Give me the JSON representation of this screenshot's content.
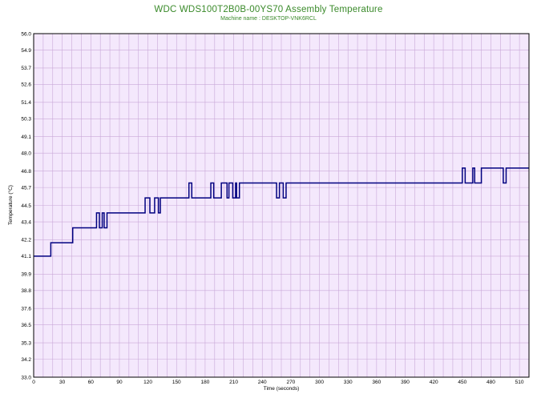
{
  "chart_data": {
    "type": "line",
    "title": "WDC WDS100T2B0B-00YS70 Assembly Temperature",
    "subtitle": "Machine name : DESKTOP-VNK6RCL",
    "xlabel": "Time (seconds)",
    "ylabel": "Temperature (°C)",
    "xlim": [
      0,
      520
    ],
    "ylim": [
      33.0,
      56.0
    ],
    "grid": true,
    "x_ticks": [
      "0",
      "30",
      "60",
      "90",
      "120",
      "150",
      "180",
      "210",
      "240",
      "270",
      "300",
      "330",
      "360",
      "390",
      "420",
      "450",
      "480",
      "510"
    ],
    "y_ticks": [
      "56.0",
      "54.9",
      "53.7",
      "52.6",
      "51.4",
      "50.3",
      "49.1",
      "48.0",
      "46.8",
      "45.7",
      "44.5",
      "43.4",
      "42.2",
      "41.1",
      "39.9",
      "38.8",
      "37.6",
      "36.5",
      "35.3",
      "34.2",
      "33.0"
    ],
    "colors": {
      "plot_bg": "#f4e8fc",
      "grid": "#c9a8d8",
      "line": "#000080",
      "title": "#3a8a2a"
    },
    "series": [
      {
        "name": "",
        "x": [
          0,
          18,
          18,
          41,
          41,
          66,
          66,
          69,
          69,
          72,
          72,
          74,
          74,
          77,
          77,
          81,
          81,
          117,
          117,
          122,
          122,
          127,
          127,
          131,
          131,
          133,
          133,
          163,
          163,
          166,
          166,
          186,
          186,
          189,
          189,
          197,
          197,
          203,
          203,
          205,
          205,
          209,
          209,
          212,
          212,
          213,
          213,
          216,
          216,
          226,
          226,
          255,
          255,
          258,
          258,
          262,
          262,
          265,
          265,
          450,
          450,
          453,
          453,
          461,
          461,
          463,
          463,
          470,
          470,
          473,
          473,
          493,
          493,
          496,
          496,
          520
        ],
        "y": [
          41.1,
          41.1,
          42.0,
          42.0,
          43.0,
          43.0,
          44.0,
          44.0,
          43.0,
          43.0,
          44.0,
          44.0,
          43.0,
          43.0,
          44.0,
          44.0,
          44.0,
          44.0,
          45.0,
          45.0,
          44.0,
          44.0,
          45.0,
          45.0,
          44.0,
          44.0,
          45.0,
          45.0,
          46.0,
          46.0,
          45.0,
          45.0,
          46.0,
          46.0,
          45.0,
          45.0,
          46.0,
          46.0,
          45.0,
          45.0,
          46.0,
          46.0,
          45.0,
          45.0,
          46.0,
          46.0,
          45.0,
          45.0,
          46.0,
          46.0,
          46.0,
          46.0,
          45.0,
          45.0,
          46.0,
          46.0,
          45.0,
          45.0,
          46.0,
          46.0,
          47.0,
          47.0,
          46.0,
          46.0,
          47.0,
          47.0,
          46.0,
          46.0,
          47.0,
          47.0,
          47.0,
          47.0,
          46.0,
          46.0,
          47.0,
          47.0
        ]
      }
    ]
  }
}
